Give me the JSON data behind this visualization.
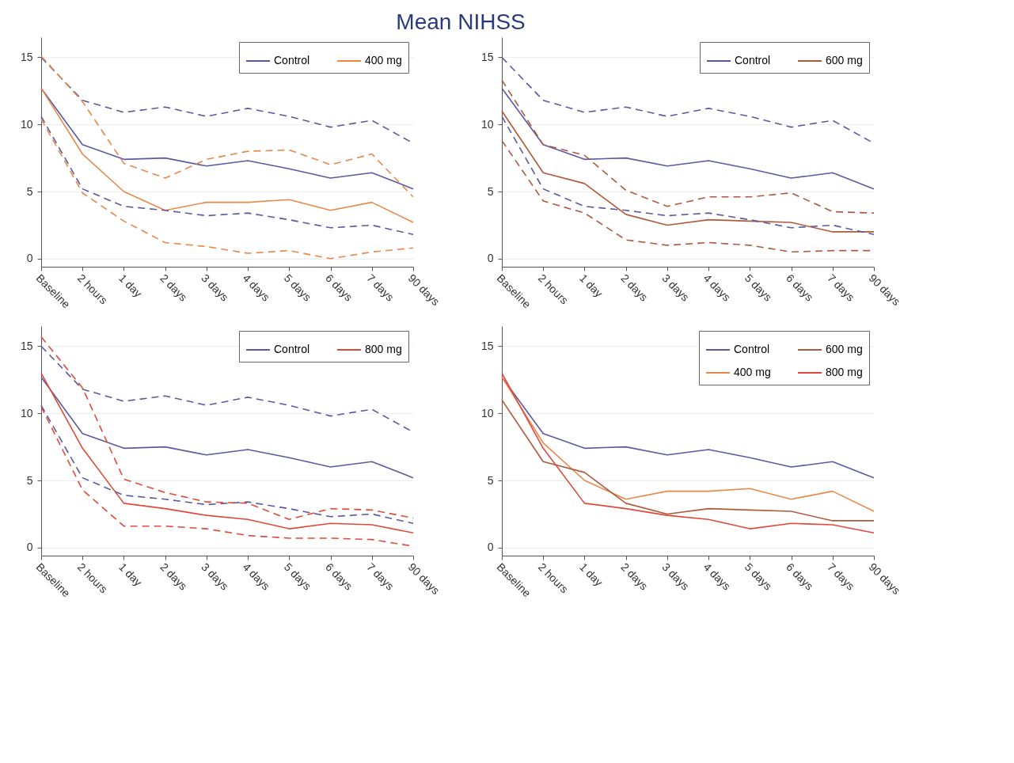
{
  "chart_data": [
    {
      "type": "line",
      "title": "Mean NIHSS",
      "categories": [
        "Baseline",
        "2 hours",
        "1 day",
        "2 days",
        "3 days",
        "4 days",
        "5 days",
        "6 days",
        "7 days",
        "90 days"
      ],
      "ylim": [
        -0.6,
        16.5
      ],
      "yticks": [
        0,
        5,
        10,
        15
      ],
      "grid": "y",
      "legend": "top right",
      "series": [
        {
          "name": "Control",
          "color": "#5b5aa0",
          "line_style": "solid",
          "values": [
            12.7,
            8.5,
            7.4,
            7.5,
            6.9,
            7.3,
            6.7,
            6.0,
            6.4,
            5.2
          ]
        },
        {
          "name": "400 mg",
          "color": "#e8894a",
          "line_style": "solid",
          "values": [
            12.7,
            7.8,
            5.0,
            3.6,
            4.2,
            4.2,
            4.4,
            3.6,
            4.2,
            2.7
          ]
        },
        {
          "color": "#5b5aa0",
          "line_style": "dashed",
          "values": [
            15.0,
            11.8,
            10.9,
            11.3,
            10.6,
            11.2,
            10.6,
            9.8,
            10.3,
            8.6
          ]
        },
        {
          "color": "#5b5aa0",
          "line_style": "dashed",
          "values": [
            10.6,
            5.2,
            3.9,
            3.6,
            3.2,
            3.4,
            2.9,
            2.3,
            2.5,
            1.8
          ]
        },
        {
          "color": "#e8894a",
          "line_style": "dashed",
          "values": [
            15.1,
            11.7,
            7.1,
            6.0,
            7.4,
            8.0,
            8.1,
            7.0,
            7.8,
            4.6
          ]
        },
        {
          "color": "#e8894a",
          "line_style": "dashed",
          "values": [
            10.4,
            4.9,
            2.8,
            1.2,
            0.9,
            0.4,
            0.6,
            0.0,
            0.5,
            0.8
          ]
        }
      ]
    },
    {
      "type": "line",
      "categories": [
        "Baseline",
        "2 hours",
        "1 day",
        "2 days",
        "3 days",
        "4 days",
        "5 days",
        "6 days",
        "7 days",
        "90 days"
      ],
      "ylim": [
        -0.6,
        16.5
      ],
      "yticks": [
        0,
        5,
        10,
        15
      ],
      "grid": "y",
      "legend": "top right",
      "series": [
        {
          "name": "Control",
          "color": "#5b5aa0",
          "line_style": "solid",
          "values": [
            12.7,
            8.5,
            7.4,
            7.5,
            6.9,
            7.3,
            6.7,
            6.0,
            6.4,
            5.2
          ]
        },
        {
          "name": "600 mg",
          "color": "#b05a3c",
          "line_style": "solid",
          "values": [
            11.0,
            6.4,
            5.6,
            3.3,
            2.5,
            2.9,
            2.8,
            2.7,
            2.0,
            2.0
          ]
        },
        {
          "color": "#5b5aa0",
          "line_style": "dashed",
          "values": [
            15.0,
            11.8,
            10.9,
            11.3,
            10.6,
            11.2,
            10.6,
            9.8,
            10.3,
            8.6
          ]
        },
        {
          "color": "#5b5aa0",
          "line_style": "dashed",
          "values": [
            10.6,
            5.2,
            3.9,
            3.6,
            3.2,
            3.4,
            2.9,
            2.3,
            2.5,
            1.8
          ]
        },
        {
          "color": "#b05a3c",
          "line_style": "dashed",
          "values": [
            13.3,
            8.5,
            7.7,
            5.1,
            3.9,
            4.6,
            4.6,
            4.9,
            3.5,
            3.4
          ]
        },
        {
          "color": "#b05a3c",
          "line_style": "dashed",
          "values": [
            8.8,
            4.3,
            3.4,
            1.4,
            1.0,
            1.2,
            1.0,
            0.5,
            0.6,
            0.6
          ]
        }
      ]
    },
    {
      "type": "line",
      "categories": [
        "Baseline",
        "2 hours",
        "1 day",
        "2 days",
        "3 days",
        "4 days",
        "5 days",
        "6 days",
        "7 days",
        "90 days"
      ],
      "ylim": [
        -0.6,
        16.5
      ],
      "yticks": [
        0,
        5,
        10,
        15
      ],
      "grid": "y",
      "legend": "top right",
      "series": [
        {
          "name": "Control",
          "color": "#5b5aa0",
          "line_style": "solid",
          "values": [
            12.7,
            8.5,
            7.4,
            7.5,
            6.9,
            7.3,
            6.7,
            6.0,
            6.4,
            5.2
          ]
        },
        {
          "name": "800 mg",
          "color": "#e04a3a",
          "line_style": "solid",
          "values": [
            13.0,
            7.4,
            3.3,
            2.9,
            2.4,
            2.1,
            1.4,
            1.8,
            1.7,
            1.1
          ]
        },
        {
          "color": "#5b5aa0",
          "line_style": "dashed",
          "values": [
            15.0,
            11.8,
            10.9,
            11.3,
            10.6,
            11.2,
            10.6,
            9.8,
            10.3,
            8.6
          ]
        },
        {
          "color": "#5b5aa0",
          "line_style": "dashed",
          "values": [
            10.6,
            5.2,
            3.9,
            3.6,
            3.2,
            3.4,
            2.9,
            2.3,
            2.5,
            1.8
          ]
        },
        {
          "color": "#e04a3a",
          "line_style": "dashed",
          "values": [
            15.7,
            11.9,
            5.1,
            4.1,
            3.4,
            3.3,
            2.1,
            2.9,
            2.8,
            2.2
          ]
        },
        {
          "color": "#e04a3a",
          "line_style": "dashed",
          "values": [
            10.5,
            4.3,
            1.6,
            1.6,
            1.4,
            0.9,
            0.7,
            0.7,
            0.6,
            0.1
          ]
        }
      ]
    },
    {
      "type": "line",
      "categories": [
        "Baseline",
        "2 hours",
        "1 day",
        "2 days",
        "3 days",
        "4 days",
        "5 days",
        "6 days",
        "7 days",
        "90 days"
      ],
      "ylim": [
        -0.6,
        16.5
      ],
      "yticks": [
        0,
        5,
        10,
        15
      ],
      "grid": "y",
      "legend": "top right",
      "series": [
        {
          "name": "Control",
          "color": "#5b5aa0",
          "line_style": "solid",
          "values": [
            12.7,
            8.5,
            7.4,
            7.5,
            6.9,
            7.3,
            6.7,
            6.0,
            6.4,
            5.2
          ]
        },
        {
          "name": "400 mg",
          "color": "#e8894a",
          "line_style": "solid",
          "values": [
            12.7,
            7.8,
            5.0,
            3.6,
            4.2,
            4.2,
            4.4,
            3.6,
            4.2,
            2.7
          ]
        },
        {
          "name": "600 mg",
          "color": "#b05a3c",
          "line_style": "solid",
          "values": [
            11.0,
            6.4,
            5.6,
            3.3,
            2.5,
            2.9,
            2.8,
            2.7,
            2.0,
            2.0
          ]
        },
        {
          "name": "800 mg",
          "color": "#e04a3a",
          "line_style": "solid",
          "values": [
            13.0,
            7.4,
            3.3,
            2.9,
            2.4,
            2.1,
            1.4,
            1.8,
            1.7,
            1.1
          ]
        }
      ]
    }
  ]
}
